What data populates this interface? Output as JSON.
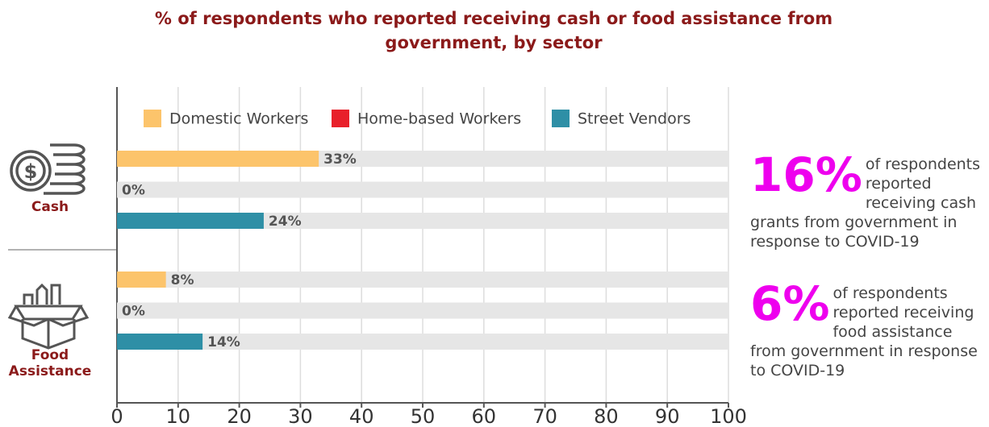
{
  "chart_data": {
    "type": "bar",
    "orientation": "horizontal",
    "title": "% of respondents who reported receiving cash or food assistance from government, by sector",
    "categories": [
      "Cash",
      "Food Assistance"
    ],
    "series": [
      {
        "name": "Domestic Workers",
        "color": "#fcc46b",
        "values": [
          33,
          8
        ],
        "value_labels": [
          "33%",
          "8%"
        ]
      },
      {
        "name": "Home-based Workers",
        "color": "#e8202a",
        "values": [
          0,
          0
        ],
        "value_labels": [
          "0%",
          "0%"
        ]
      },
      {
        "name": "Street Vendors",
        "color": "#2e8fa6",
        "values": [
          24,
          14
        ],
        "value_labels": [
          "24%",
          "14%"
        ]
      }
    ],
    "xlim": [
      0,
      100
    ],
    "xticks": [
      0,
      10,
      20,
      30,
      40,
      50,
      60,
      70,
      80,
      90,
      100
    ],
    "grid": true,
    "annotations": [
      {
        "label": "16%",
        "text": "of respondents reported receiving cash grants from government in response to COVID-19"
      },
      {
        "label": "6%",
        "text": "of respondents reported receiving food assistance from government in response to COVID-19"
      }
    ]
  }
}
